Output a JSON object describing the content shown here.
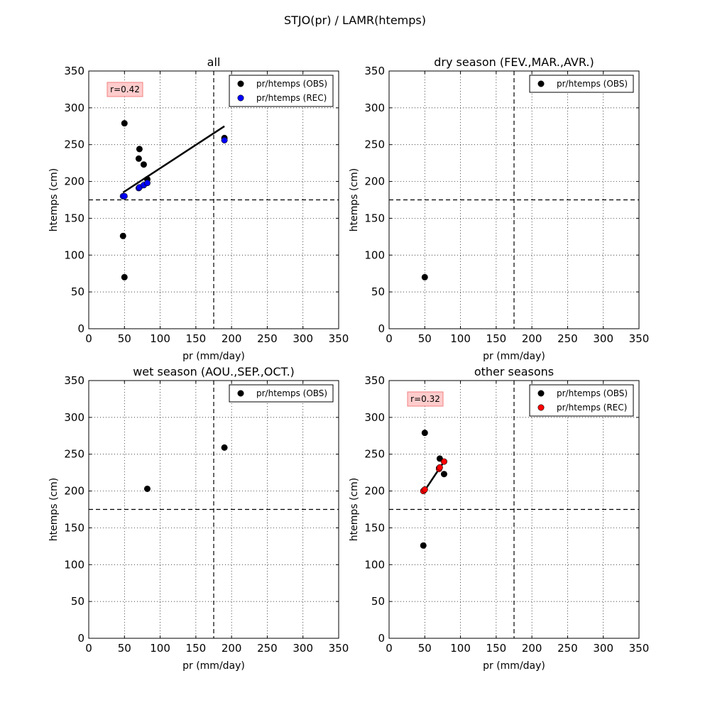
{
  "figure": {
    "suptitle": "STJO(pr) / LAMR(htemps)"
  },
  "colors": {
    "obs": "#000000",
    "rec_all": "#0000ff",
    "rec_other": "#ff0000",
    "corr_box_fill": "#ffcccc",
    "corr_box_edge": "#f08080"
  },
  "chart_data": [
    {
      "id": "all",
      "type": "scatter",
      "title": "all",
      "xlabel": "pr (mm/day)",
      "ylabel": "htemps (cm)",
      "xlim": [
        0,
        350
      ],
      "ylim": [
        0,
        350
      ],
      "xticks": [
        0,
        50,
        100,
        150,
        200,
        250,
        300,
        350
      ],
      "yticks": [
        0,
        50,
        100,
        150,
        200,
        250,
        300,
        350
      ],
      "grid": true,
      "legend_position": "top-right",
      "reference_lines": {
        "x": 175,
        "y": 175
      },
      "correlation": "r=0.42",
      "series": [
        {
          "name": "pr/htemps (OBS)",
          "color": "#000000",
          "points": [
            [
              50,
              279
            ],
            [
              48,
              126
            ],
            [
              50,
              70
            ],
            [
              70,
              231
            ],
            [
              71,
              244
            ],
            [
              77,
              223
            ],
            [
              82,
              203
            ],
            [
              190,
              259
            ]
          ]
        },
        {
          "name": "pr/htemps (REC)",
          "color": "#0000ff",
          "points": [
            [
              48,
              180
            ],
            [
              50,
              180
            ],
            [
              70,
              191
            ],
            [
              71,
              192
            ],
            [
              77,
              195
            ],
            [
              82,
              198
            ],
            [
              190,
              256
            ]
          ]
        }
      ],
      "fit_line": [
        [
          48,
          185
        ],
        [
          190,
          275
        ]
      ]
    },
    {
      "id": "dry",
      "type": "scatter",
      "title": "dry season (FEV.,MAR.,AVR.)",
      "xlabel": "pr (mm/day)",
      "ylabel": "htemps (cm)",
      "xlim": [
        0,
        350
      ],
      "ylim": [
        0,
        350
      ],
      "xticks": [
        0,
        50,
        100,
        150,
        200,
        250,
        300,
        350
      ],
      "yticks": [
        0,
        50,
        100,
        150,
        200,
        250,
        300,
        350
      ],
      "grid": true,
      "legend_position": "top-right",
      "reference_lines": {
        "x": 175,
        "y": 175
      },
      "series": [
        {
          "name": "pr/htemps (OBS)",
          "color": "#000000",
          "points": [
            [
              50,
              70
            ]
          ]
        }
      ]
    },
    {
      "id": "wet",
      "type": "scatter",
      "title": "wet season (AOU.,SEP.,OCT.)",
      "xlabel": "pr (mm/day)",
      "ylabel": "htemps (cm)",
      "xlim": [
        0,
        350
      ],
      "ylim": [
        0,
        350
      ],
      "xticks": [
        0,
        50,
        100,
        150,
        200,
        250,
        300,
        350
      ],
      "yticks": [
        0,
        50,
        100,
        150,
        200,
        250,
        300,
        350
      ],
      "grid": true,
      "legend_position": "top-right",
      "reference_lines": {
        "x": 175,
        "y": 175
      },
      "series": [
        {
          "name": "pr/htemps (OBS)",
          "color": "#000000",
          "points": [
            [
              82,
              203
            ],
            [
              190,
              259
            ]
          ]
        }
      ]
    },
    {
      "id": "other",
      "type": "scatter",
      "title": "other seasons",
      "xlabel": "pr (mm/day)",
      "ylabel": "htemps (cm)",
      "xlim": [
        0,
        350
      ],
      "ylim": [
        0,
        350
      ],
      "xticks": [
        0,
        50,
        100,
        150,
        200,
        250,
        300,
        350
      ],
      "yticks": [
        0,
        50,
        100,
        150,
        200,
        250,
        300,
        350
      ],
      "grid": true,
      "legend_position": "top-right",
      "reference_lines": {
        "x": 175,
        "y": 175
      },
      "correlation": "r=0.32",
      "series": [
        {
          "name": "pr/htemps (OBS)",
          "color": "#000000",
          "points": [
            [
              50,
              279
            ],
            [
              48,
              126
            ],
            [
              70,
              231
            ],
            [
              71,
              244
            ],
            [
              77,
              223
            ]
          ]
        },
        {
          "name": "pr/htemps (REC)",
          "color": "#ff0000",
          "points": [
            [
              48,
              200
            ],
            [
              50,
              202
            ],
            [
              70,
              230
            ],
            [
              71,
              232
            ],
            [
              77,
              240
            ]
          ]
        }
      ],
      "fit_line": [
        [
          48,
          198
        ],
        [
          77,
          240
        ]
      ]
    }
  ]
}
